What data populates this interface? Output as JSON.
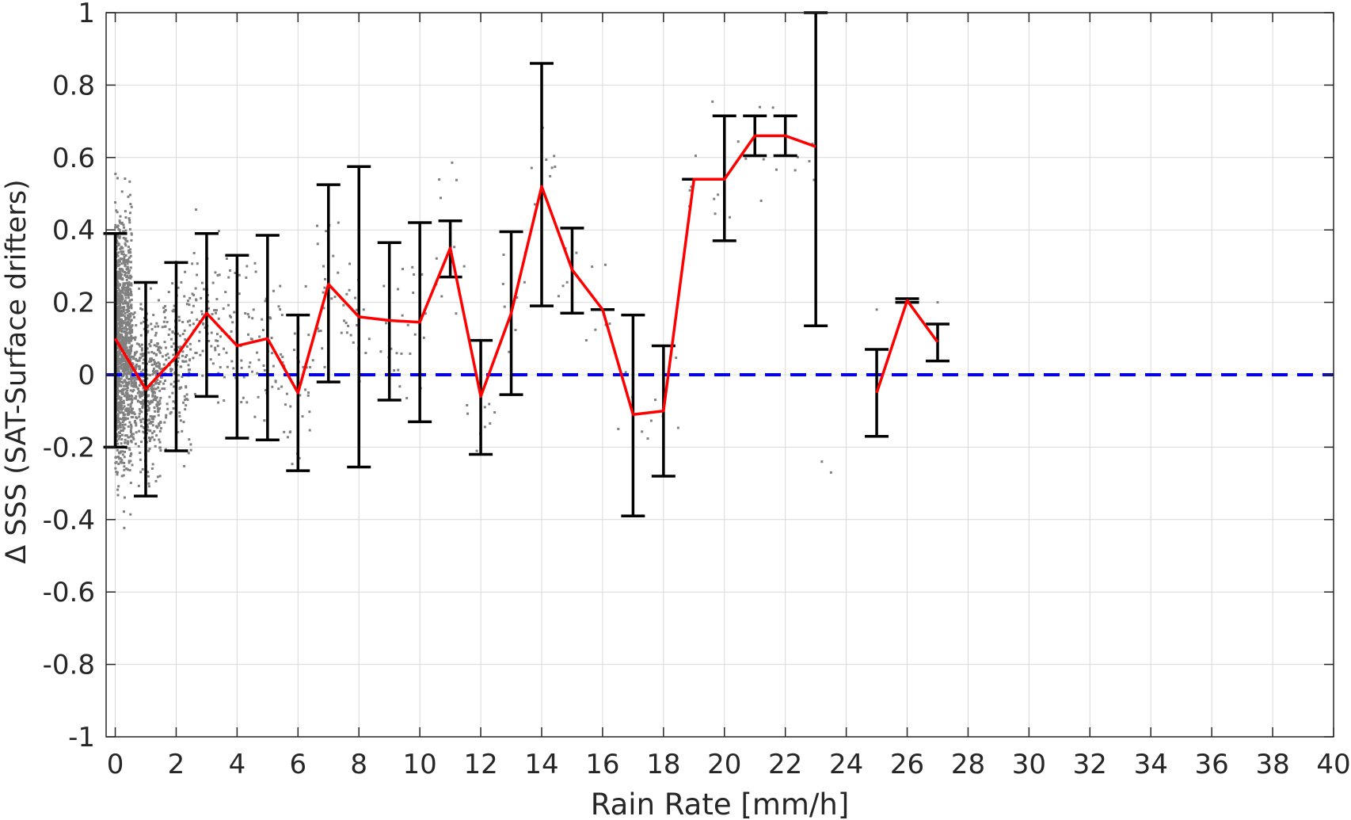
{
  "chart_data": {
    "type": "line",
    "title": "",
    "xlabel": "Rain Rate [mm/h]",
    "ylabel": "Δ SSS (SAT-Surface drifters)",
    "xlim": [
      -0.3,
      40
    ],
    "ylim": [
      -1,
      1
    ],
    "grid": true,
    "x_ticks": [
      0,
      2,
      4,
      6,
      8,
      10,
      12,
      14,
      16,
      18,
      20,
      22,
      24,
      26,
      28,
      30,
      32,
      34,
      36,
      38,
      40
    ],
    "x_tick_labels": [
      "0",
      "2",
      "4",
      "6",
      "8",
      "10",
      "12",
      "14",
      "16",
      "18",
      "20",
      "22",
      "24",
      "26",
      "28",
      "30",
      "32",
      "34",
      "36",
      "38",
      "40"
    ],
    "y_ticks": [
      1,
      0.8,
      0.6,
      0.4,
      0.2,
      0,
      -0.2,
      -0.4,
      -0.6,
      -0.8,
      -1
    ],
    "y_tick_labels": [
      "1",
      "0.8",
      "0.6",
      "0.4",
      "0.2",
      "0",
      "-0.2",
      "-0.4",
      "-0.6",
      "-0.8",
      "-1"
    ],
    "colors": {
      "mean_line": "#ff0000",
      "error_bars": "#000000",
      "zero_line": "#0000ff",
      "scatter": "#808080",
      "grid": "#d9d9d9",
      "axes": "#262626"
    },
    "series": [
      {
        "type": "line",
        "x": [
          0,
          1,
          2,
          3,
          4,
          5,
          6,
          7,
          8,
          9,
          10,
          11,
          12,
          13,
          14,
          15,
          16,
          17,
          18,
          19,
          20,
          21,
          22,
          23
        ],
        "values": [
          0.1,
          -0.04,
          0.05,
          0.17,
          0.08,
          0.1,
          -0.05,
          0.25,
          0.16,
          0.15,
          0.145,
          0.35,
          -0.06,
          0.17,
          0.52,
          0.29,
          0.18,
          -0.11,
          -0.1,
          0.54,
          0.54,
          0.66,
          0.66,
          0.63
        ]
      },
      {
        "type": "line",
        "x": [
          25,
          26,
          27
        ],
        "values": [
          -0.05,
          0.205,
          0.09
        ]
      },
      {
        "type": "errorbar",
        "x": [
          0,
          1,
          2,
          3,
          4,
          5,
          6,
          7,
          8,
          9,
          10,
          11,
          12,
          13,
          14,
          15,
          16,
          17,
          18,
          19,
          20,
          21,
          22,
          23,
          25,
          26,
          27
        ],
        "lower": [
          -0.2,
          -0.335,
          -0.21,
          -0.06,
          -0.175,
          -0.18,
          -0.265,
          -0.02,
          -0.255,
          -0.07,
          -0.13,
          0.27,
          -0.22,
          -0.055,
          0.19,
          0.17,
          0.18,
          -0.39,
          -0.28,
          0.54,
          0.37,
          0.605,
          0.605,
          0.135,
          -0.17,
          0.2,
          0.038
        ],
        "upper": [
          0.39,
          0.255,
          0.31,
          0.39,
          0.33,
          0.385,
          0.165,
          0.525,
          0.575,
          0.365,
          0.42,
          0.425,
          0.095,
          0.395,
          0.86,
          0.405,
          0.18,
          0.165,
          0.08,
          0.54,
          0.715,
          0.715,
          0.715,
          1.0,
          0.07,
          0.21,
          0.14
        ]
      },
      {
        "type": "reference",
        "y": 0
      }
    ]
  }
}
